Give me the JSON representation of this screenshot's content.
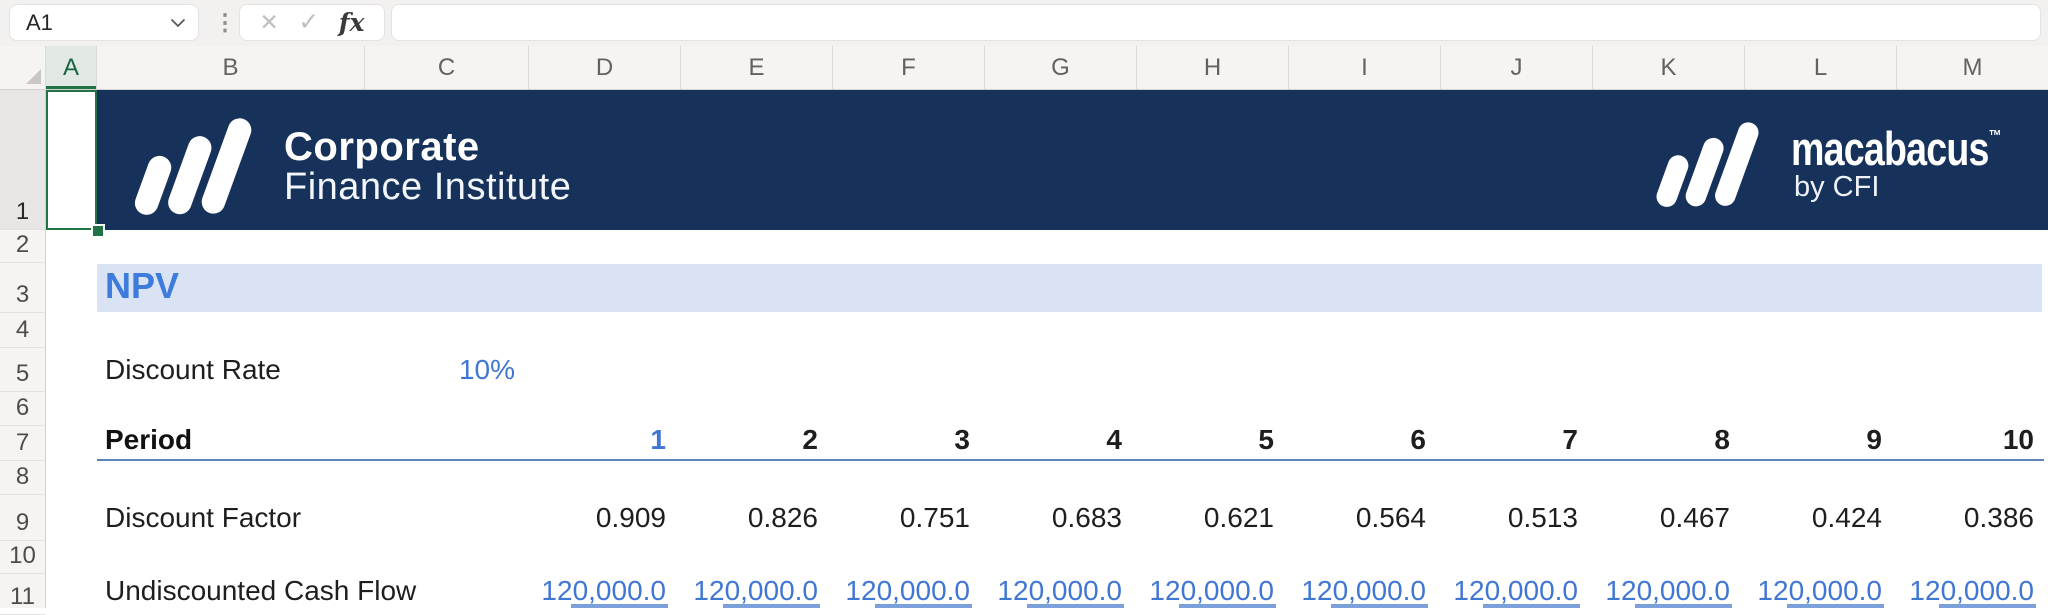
{
  "formula_bar": {
    "cell_reference": "A1",
    "formula_content": ""
  },
  "grid": {
    "column_headers": [
      "A",
      "B",
      "C",
      "D",
      "E",
      "F",
      "G",
      "H",
      "I",
      "J",
      "K",
      "L",
      "M"
    ],
    "row_numbers": [
      "1",
      "2",
      "3",
      "4",
      "5",
      "6",
      "7",
      "8",
      "9",
      "10",
      "11"
    ],
    "selected_column": "A",
    "selected_row": "1"
  },
  "banner": {
    "org_line1": "Corporate",
    "org_line2": "Finance Institute",
    "brand_name": "macabacus",
    "brand_tm": "™",
    "brand_sub": "by CFI"
  },
  "sheet": {
    "title": "NPV",
    "rows": {
      "discount_rate": {
        "label": "Discount Rate",
        "value": "10%"
      },
      "period": {
        "label": "Period",
        "values": [
          "1",
          "2",
          "3",
          "4",
          "5",
          "6",
          "7",
          "8",
          "9",
          "10"
        ]
      },
      "discount_factor": {
        "label": "Discount Factor",
        "values": [
          "0.909",
          "0.826",
          "0.751",
          "0.683",
          "0.621",
          "0.564",
          "0.513",
          "0.467",
          "0.424",
          "0.386"
        ]
      },
      "undiscounted_cash_flow": {
        "label": "Undiscounted Cash Flow",
        "values": [
          "120,000.0",
          "120,000.0",
          "120,000.0",
          "120,000.0",
          "120,000.0",
          "120,000.0",
          "120,000.0",
          "120,000.0",
          "120,000.0",
          "120,000.0"
        ]
      }
    }
  },
  "colors": {
    "banner_navy": "#16315a",
    "title_blue": "#3d7bdc",
    "title_band": "#dae3f3",
    "input_blue": "#4077d4",
    "period_underline": "#5b84b8",
    "selection_green": "#217346"
  }
}
